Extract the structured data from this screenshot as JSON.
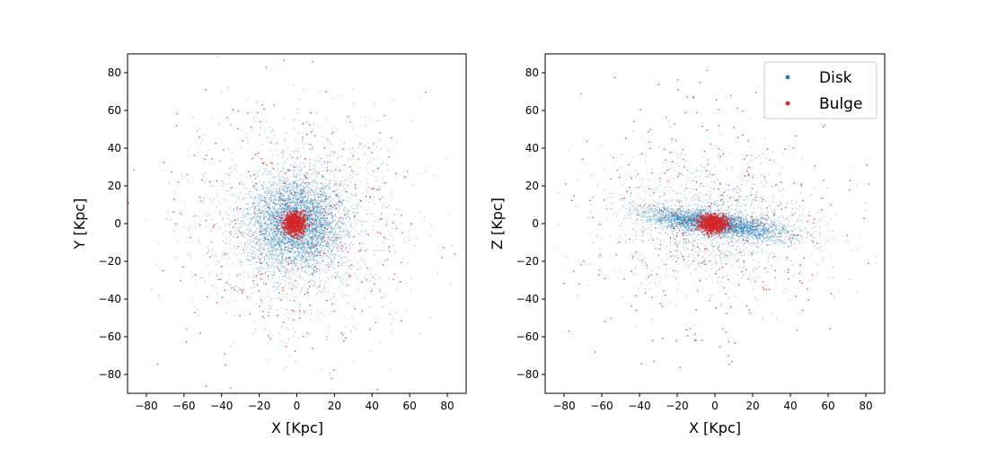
{
  "chart_data": [
    {
      "type": "scatter",
      "xlabel": "X [Kpc]",
      "ylabel": "Y [Kpc]",
      "xlim": [
        -90,
        90
      ],
      "ylim": [
        -90,
        90
      ],
      "xticks": [
        -80,
        -60,
        -40,
        -20,
        0,
        20,
        40,
        60,
        80
      ],
      "yticks": [
        -80,
        -60,
        -40,
        -20,
        0,
        20,
        40,
        60,
        80
      ],
      "grid": false,
      "series": [
        {
          "name": "Disk",
          "color": "#1f77b4",
          "distribution": {
            "center": [
              0,
              0
            ],
            "core_sigma": [
              12,
              12
            ],
            "halo_sigma": [
              28,
              28
            ],
            "count": 5000
          }
        },
        {
          "name": "Bulge",
          "color": "#d62728",
          "distribution": {
            "center": [
              -1,
              0
            ],
            "core_sigma": [
              3,
              3
            ],
            "halo_sigma": [
              35,
              35
            ],
            "count": 1200
          }
        }
      ]
    },
    {
      "type": "scatter",
      "xlabel": "X [Kpc]",
      "ylabel": "Z [Kpc]",
      "xlim": [
        -90,
        90
      ],
      "ylim": [
        -90,
        90
      ],
      "xticks": [
        -80,
        -60,
        -40,
        -20,
        0,
        20,
        40,
        60,
        80
      ],
      "yticks": [
        -80,
        -60,
        -40,
        -20,
        0,
        20,
        40,
        60,
        80
      ],
      "grid": false,
      "legend": {
        "placement": "top-right",
        "entries": [
          "Disk",
          "Bulge"
        ]
      },
      "series": [
        {
          "name": "Disk",
          "color": "#1f77b4",
          "distribution": {
            "center": [
              0,
              0
            ],
            "core_sigma": [
              18,
              3
            ],
            "tilt_slope": -0.13,
            "halo_sigma": [
              30,
              18
            ],
            "count": 4000
          }
        },
        {
          "name": "Bulge",
          "color": "#d62728",
          "distribution": {
            "center": [
              -1,
              0
            ],
            "core_sigma": [
              4,
              2.5
            ],
            "halo_sigma": [
              35,
              35
            ],
            "count": 1200
          }
        }
      ]
    }
  ]
}
